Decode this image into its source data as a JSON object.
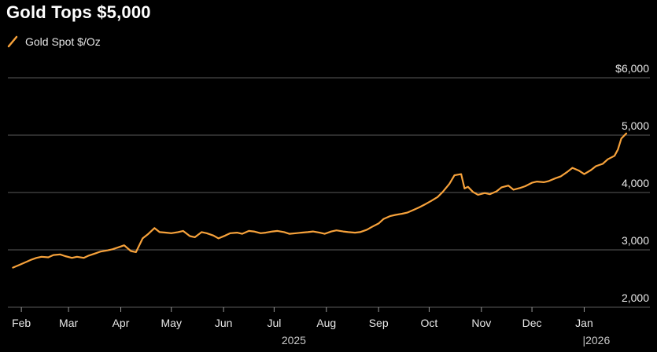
{
  "colors": {
    "background": "#000000",
    "series": "#f7a23b",
    "grid": "#5a5a5a",
    "text": "#e8e8e8"
  },
  "chart_data": {
    "type": "line",
    "title": "Gold Tops $5,000",
    "xlabel": "",
    "ylabel": "",
    "ylim": [
      2000,
      6000
    ],
    "y_ticks": [
      {
        "value": 6000,
        "label": "$6,000"
      },
      {
        "value": 5000,
        "label": "5,000"
      },
      {
        "value": 4000,
        "label": "4,000"
      },
      {
        "value": 3000,
        "label": "3,000"
      },
      {
        "value": 2000,
        "label": "2,000"
      }
    ],
    "x_range": [
      "2025-01-24",
      "2026-02-09"
    ],
    "x_ticks": [
      {
        "date": "2025-02-01",
        "label": "Feb"
      },
      {
        "date": "2025-03-01",
        "label": "Mar"
      },
      {
        "date": "2025-04-01",
        "label": "Apr"
      },
      {
        "date": "2025-05-01",
        "label": "May"
      },
      {
        "date": "2025-06-01",
        "label": "Jun"
      },
      {
        "date": "2025-07-01",
        "label": "Jul"
      },
      {
        "date": "2025-08-01",
        "label": "Aug"
      },
      {
        "date": "2025-09-01",
        "label": "Sep"
      },
      {
        "date": "2025-10-01",
        "label": "Oct"
      },
      {
        "date": "2025-11-01",
        "label": "Nov"
      },
      {
        "date": "2025-12-01",
        "label": "Dec"
      },
      {
        "date": "2026-01-01",
        "label": "Jan"
      }
    ],
    "year_labels": [
      {
        "date": "2025-07-01",
        "label": "2025"
      },
      {
        "date": "2026-01-01",
        "label": "|2026"
      }
    ],
    "legend_position": "top-left",
    "grid": true,
    "series": [
      {
        "name": "Gold Spot $/Oz",
        "points": [
          [
            "2025-01-27",
            2690
          ],
          [
            "2025-01-31",
            2740
          ],
          [
            "2025-02-04",
            2790
          ],
          [
            "2025-02-07",
            2830
          ],
          [
            "2025-02-10",
            2860
          ],
          [
            "2025-02-13",
            2880
          ],
          [
            "2025-02-17",
            2870
          ],
          [
            "2025-02-20",
            2910
          ],
          [
            "2025-02-24",
            2920
          ],
          [
            "2025-02-27",
            2890
          ],
          [
            "2025-03-03",
            2860
          ],
          [
            "2025-03-06",
            2880
          ],
          [
            "2025-03-10",
            2860
          ],
          [
            "2025-03-13",
            2900
          ],
          [
            "2025-03-17",
            2940
          ],
          [
            "2025-03-20",
            2970
          ],
          [
            "2025-03-24",
            2990
          ],
          [
            "2025-03-27",
            3010
          ],
          [
            "2025-03-31",
            3050
          ],
          [
            "2025-04-03",
            3080
          ],
          [
            "2025-04-07",
            2980
          ],
          [
            "2025-04-10",
            2960
          ],
          [
            "2025-04-14",
            3200
          ],
          [
            "2025-04-17",
            3270
          ],
          [
            "2025-04-21",
            3380
          ],
          [
            "2025-04-24",
            3310
          ],
          [
            "2025-04-28",
            3300
          ],
          [
            "2025-05-01",
            3290
          ],
          [
            "2025-05-05",
            3310
          ],
          [
            "2025-05-08",
            3330
          ],
          [
            "2025-05-12",
            3240
          ],
          [
            "2025-05-15",
            3220
          ],
          [
            "2025-05-19",
            3310
          ],
          [
            "2025-05-22",
            3290
          ],
          [
            "2025-05-26",
            3250
          ],
          [
            "2025-05-29",
            3200
          ],
          [
            "2025-06-02",
            3250
          ],
          [
            "2025-06-05",
            3290
          ],
          [
            "2025-06-09",
            3300
          ],
          [
            "2025-06-12",
            3280
          ],
          [
            "2025-06-16",
            3330
          ],
          [
            "2025-06-19",
            3320
          ],
          [
            "2025-06-23",
            3290
          ],
          [
            "2025-06-26",
            3300
          ],
          [
            "2025-06-30",
            3320
          ],
          [
            "2025-07-03",
            3330
          ],
          [
            "2025-07-07",
            3310
          ],
          [
            "2025-07-10",
            3280
          ],
          [
            "2025-07-14",
            3290
          ],
          [
            "2025-07-17",
            3300
          ],
          [
            "2025-07-21",
            3310
          ],
          [
            "2025-07-24",
            3320
          ],
          [
            "2025-07-28",
            3300
          ],
          [
            "2025-07-31",
            3280
          ],
          [
            "2025-08-04",
            3320
          ],
          [
            "2025-08-07",
            3340
          ],
          [
            "2025-08-11",
            3320
          ],
          [
            "2025-08-14",
            3310
          ],
          [
            "2025-08-18",
            3300
          ],
          [
            "2025-08-21",
            3310
          ],
          [
            "2025-08-25",
            3350
          ],
          [
            "2025-08-28",
            3400
          ],
          [
            "2025-09-01",
            3460
          ],
          [
            "2025-09-04",
            3540
          ],
          [
            "2025-09-08",
            3590
          ],
          [
            "2025-09-11",
            3610
          ],
          [
            "2025-09-15",
            3630
          ],
          [
            "2025-09-18",
            3650
          ],
          [
            "2025-09-22",
            3700
          ],
          [
            "2025-09-25",
            3740
          ],
          [
            "2025-09-29",
            3800
          ],
          [
            "2025-10-02",
            3850
          ],
          [
            "2025-10-06",
            3920
          ],
          [
            "2025-10-09",
            4010
          ],
          [
            "2025-10-13",
            4150
          ],
          [
            "2025-10-16",
            4300
          ],
          [
            "2025-10-20",
            4320
          ],
          [
            "2025-10-22",
            4070
          ],
          [
            "2025-10-24",
            4100
          ],
          [
            "2025-10-27",
            4010
          ],
          [
            "2025-10-30",
            3960
          ],
          [
            "2025-11-03",
            3990
          ],
          [
            "2025-11-06",
            3970
          ],
          [
            "2025-11-10",
            4020
          ],
          [
            "2025-11-13",
            4090
          ],
          [
            "2025-11-17",
            4120
          ],
          [
            "2025-11-20",
            4050
          ],
          [
            "2025-11-24",
            4080
          ],
          [
            "2025-11-27",
            4110
          ],
          [
            "2025-12-01",
            4170
          ],
          [
            "2025-12-04",
            4190
          ],
          [
            "2025-12-08",
            4180
          ],
          [
            "2025-12-11",
            4200
          ],
          [
            "2025-12-15",
            4250
          ],
          [
            "2025-12-18",
            4280
          ],
          [
            "2025-12-22",
            4360
          ],
          [
            "2025-12-25",
            4430
          ],
          [
            "2025-12-29",
            4380
          ],
          [
            "2026-01-01",
            4320
          ],
          [
            "2026-01-05",
            4390
          ],
          [
            "2026-01-08",
            4460
          ],
          [
            "2026-01-12",
            4500
          ],
          [
            "2026-01-15",
            4580
          ],
          [
            "2026-01-19",
            4640
          ],
          [
            "2026-01-21",
            4750
          ],
          [
            "2026-01-23",
            4940
          ],
          [
            "2026-01-26",
            5030
          ]
        ]
      }
    ]
  }
}
